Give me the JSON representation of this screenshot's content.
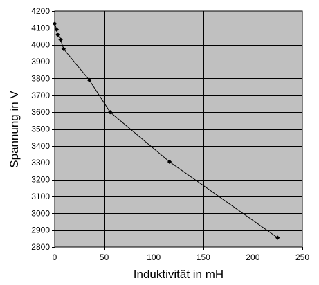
{
  "chart_data": {
    "type": "line",
    "title": "",
    "xlabel": "Induktivität in mH",
    "ylabel": "Spannung in V",
    "xlim": [
      0,
      250
    ],
    "ylim": [
      2800,
      4200
    ],
    "x_ticks": [
      0,
      50,
      100,
      150,
      200,
      250
    ],
    "y_ticks": [
      2800,
      2900,
      3000,
      3100,
      3200,
      3300,
      3400,
      3500,
      3600,
      3700,
      3800,
      3900,
      4000,
      4100,
      4200
    ],
    "grid": true,
    "legend": "none",
    "series": [
      {
        "x": [
          0,
          2,
          3,
          6,
          9,
          35,
          56,
          116,
          225
        ],
        "y": [
          4125,
          4090,
          4060,
          4030,
          3975,
          3790,
          3600,
          3305,
          2855
        ]
      }
    ],
    "colors": {
      "plot_background": "#c0c0c0",
      "grid": "#000000",
      "line": "#000000",
      "marker": "#000000"
    }
  }
}
